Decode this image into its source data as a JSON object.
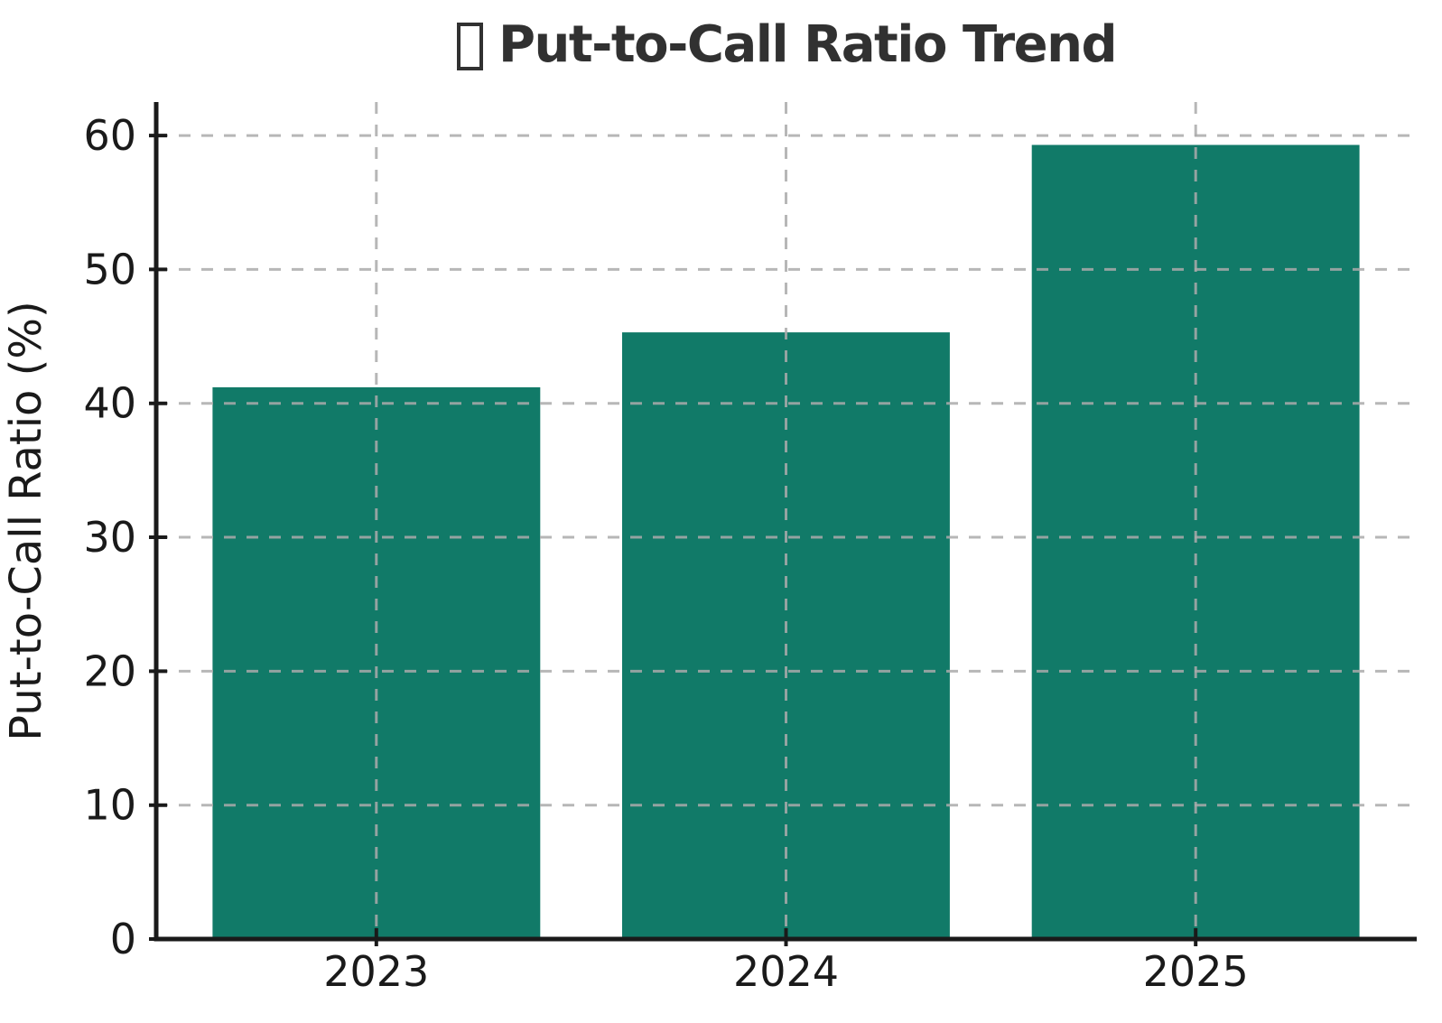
{
  "header": {
    "icon": "missing-glyph-box",
    "title": "Put-to-Call Ratio Trend"
  },
  "chart_data": {
    "type": "bar",
    "title": "Put-to-Call Ratio Trend",
    "categories": [
      "2023",
      "2024",
      "2025"
    ],
    "values": [
      41.2,
      45.3,
      59.3
    ],
    "xlabel": "",
    "ylabel": "Put-to-Call Ratio (%)",
    "ylim": [
      0,
      62.5
    ],
    "yticks": [
      0,
      10,
      20,
      30,
      40,
      50,
      60
    ],
    "legend": "none",
    "grid": true,
    "grid_style": "dashed",
    "grid_above_bars": true,
    "bar_color": "#117a68",
    "grid_color": "#ababab",
    "axis_color": "#1a1a1a",
    "text_color": "#1a1a1a",
    "title_color": "#313131",
    "background_color": "#ffffff"
  }
}
